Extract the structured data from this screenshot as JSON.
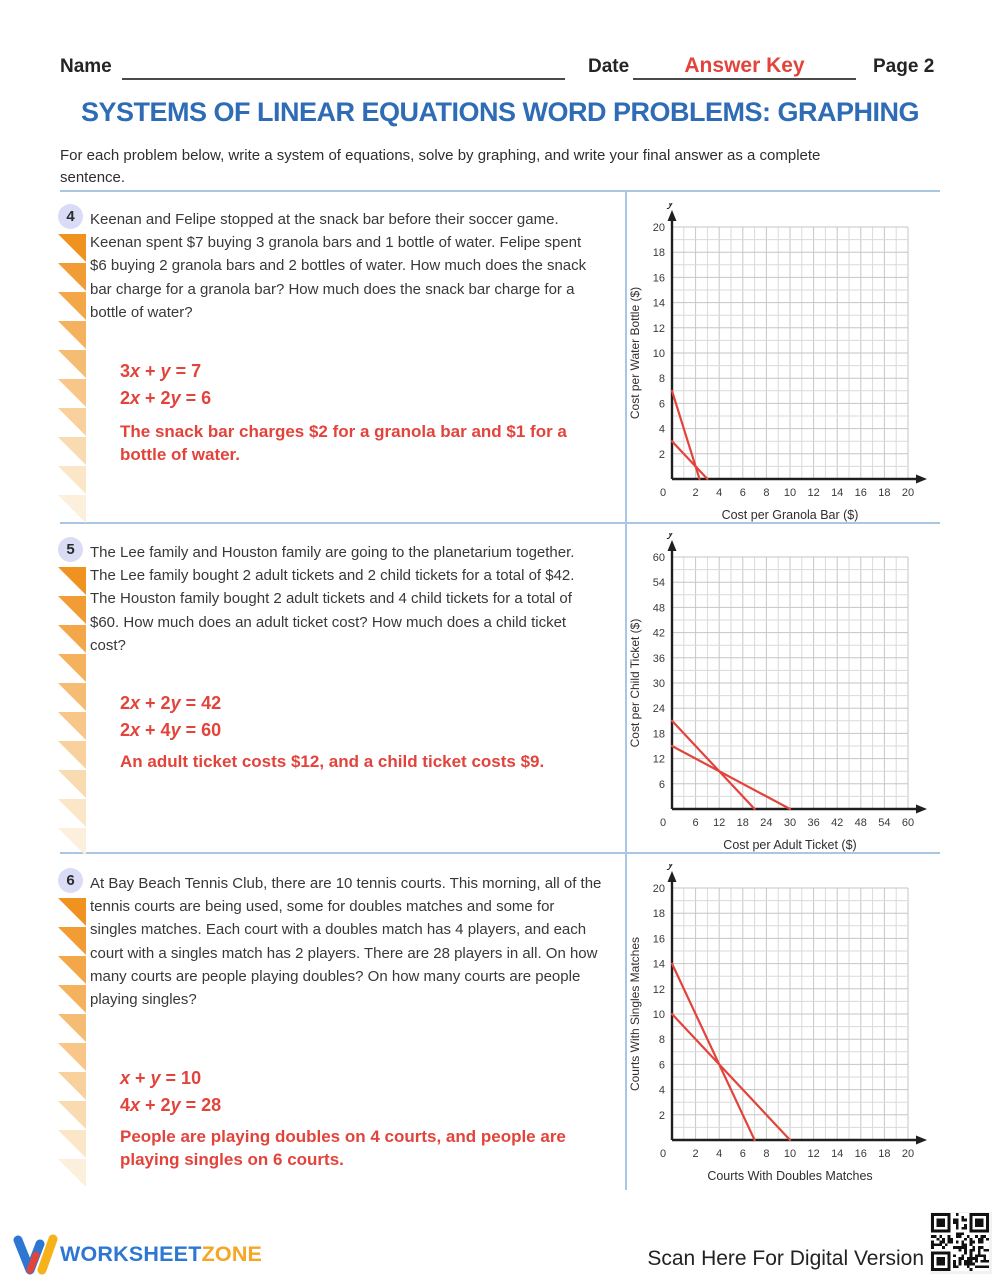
{
  "header": {
    "name_label": "Name",
    "date_label": "Date",
    "date_value": "Answer Key",
    "page_label": "Page 2"
  },
  "title": "SYSTEMS OF LINEAR EQUATIONS WORD PROBLEMS: GRAPHING",
  "instructions": "For each problem below, write a system of equations, solve by graphing, and write your final answer as a complete sentence.",
  "problems": [
    {
      "number": "4",
      "text": "Keenan and Felipe stopped at the snack bar before their soccer game. Keenan spent $7 buying 3 granola bars and 1 bottle of water. Felipe spent $6 buying 2 granola bars and 2 bottles of water. How much does the snack bar charge for a granola bar? How much does the snack bar charge for a bottle of water?",
      "equations": [
        "3x + y = 7",
        "2x + 2y = 6"
      ],
      "answer": "The snack bar charges $2 for a granola bar and $1 for a bottle of water."
    },
    {
      "number": "5",
      "text": "The Lee family and Houston family are going to the planetarium together. The Lee family bought 2 adult tickets and 2 child tickets for a total of $42. The Houston family bought 2 adult tickets and 4 child tickets for a total of $60. How much does an adult ticket cost? How much does a child ticket cost?",
      "equations": [
        "2x + 2y = 42",
        "2x + 4y = 60"
      ],
      "answer": "An adult ticket costs $12, and a child ticket costs $9."
    },
    {
      "number": "6",
      "text": "At Bay Beach Tennis Club, there are 10 tennis courts. This morning, all of the tennis courts are being used, some for doubles matches and some for singles matches. Each court with a doubles match has 4 players, and each court with a singles match has 2 players. There are 28 players in all. On how many courts are people playing doubles? On how many courts are people playing singles?",
      "equations": [
        "x + y = 10",
        "4x + 2y = 28"
      ],
      "answer": "People are playing doubles on 4 courts, and people are playing singles on 6 courts."
    }
  ],
  "chart_data": [
    {
      "type": "line",
      "xlabel": "Cost per Granola Bar ($)",
      "ylabel": "Cost per Water Bottle ($)",
      "x_axis_letter": "x",
      "y_axis_letter": "y",
      "xlim": [
        0,
        20
      ],
      "ylim": [
        0,
        20
      ],
      "tick_step": 2,
      "grid_step": 1,
      "x_ticks": [
        0,
        2,
        4,
        6,
        8,
        10,
        12,
        14,
        16,
        18,
        20
      ],
      "y_ticks": [
        2,
        4,
        6,
        8,
        10,
        12,
        14,
        16,
        18,
        20
      ],
      "grid": true,
      "line_color": "#e2443c",
      "series": [
        {
          "name": "3x + y = 7",
          "points": [
            [
              0,
              7
            ],
            [
              2.333,
              0
            ]
          ]
        },
        {
          "name": "2x + 2y = 6",
          "points": [
            [
              0,
              3
            ],
            [
              3,
              0
            ]
          ]
        }
      ],
      "intersection": [
        2,
        1
      ]
    },
    {
      "type": "line",
      "xlabel": "Cost per Adult Ticket ($)",
      "ylabel": "Cost per Child Ticket ($)",
      "x_axis_letter": "x",
      "y_axis_letter": "y",
      "xlim": [
        0,
        60
      ],
      "ylim": [
        0,
        60
      ],
      "tick_step": 6,
      "grid_step": 3,
      "x_ticks": [
        0,
        6,
        12,
        18,
        24,
        30,
        36,
        42,
        48,
        54,
        60
      ],
      "y_ticks": [
        6,
        12,
        18,
        24,
        30,
        36,
        42,
        48,
        54,
        60
      ],
      "grid": true,
      "line_color": "#e2443c",
      "series": [
        {
          "name": "2x + 2y = 42",
          "points": [
            [
              0,
              21
            ],
            [
              21,
              0
            ]
          ]
        },
        {
          "name": "2x + 4y = 60",
          "points": [
            [
              0,
              15
            ],
            [
              30,
              0
            ]
          ]
        }
      ],
      "intersection": [
        12,
        9
      ]
    },
    {
      "type": "line",
      "xlabel": "Courts With Doubles Matches",
      "ylabel": "Courts With Singles Matches",
      "x_axis_letter": "x",
      "y_axis_letter": "y",
      "xlim": [
        0,
        20
      ],
      "ylim": [
        0,
        20
      ],
      "tick_step": 2,
      "grid_step": 1,
      "x_ticks": [
        0,
        2,
        4,
        6,
        8,
        10,
        12,
        14,
        16,
        18,
        20
      ],
      "y_ticks": [
        2,
        4,
        6,
        8,
        10,
        12,
        14,
        16,
        18,
        20
      ],
      "grid": true,
      "line_color": "#e2443c",
      "series": [
        {
          "name": "4x + 2y = 28",
          "points": [
            [
              0,
              14
            ],
            [
              7,
              0
            ]
          ]
        },
        {
          "name": "x + y = 10",
          "points": [
            [
              0,
              10
            ],
            [
              10,
              0
            ]
          ]
        }
      ],
      "intersection": [
        4,
        6
      ]
    }
  ],
  "footer": {
    "brand_part1": "WORKSHEET",
    "brand_part2": "ZONE",
    "scan_label": "Scan Here For Digital Version"
  },
  "colors": {
    "title_blue": "#2e6cb5",
    "answer_red": "#e2443c",
    "divider_blue": "#a9c6e2",
    "brand_blue": "#2d77d2",
    "brand_orange": "#f5a623",
    "triangle_orange": "#f0921f",
    "grid_gray": "#d6d6d6"
  }
}
